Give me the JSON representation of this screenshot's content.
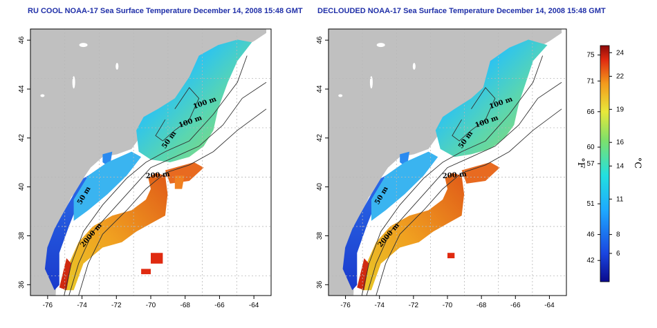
{
  "panels": [
    {
      "id": "left",
      "title": "RU COOL NOAA-17 Sea Surface Temperature December 14, 2008 15:48 GMT",
      "contour_labels": [
        "100 m",
        "100 m",
        "50 m",
        "200 m",
        "50 m",
        "2000 m"
      ]
    },
    {
      "id": "right",
      "title": "DECLOUDED NOAA-17 Sea Surface Temperature December 14, 2008 15:48 GMT",
      "contour_labels": [
        "100 m",
        "100 m",
        "50 m",
        "200 m",
        "50 m",
        "2000 m"
      ]
    }
  ],
  "axes": {
    "x_ticks": [
      "-76",
      "-74",
      "-72",
      "-70",
      "-68",
      "-66",
      "-64"
    ],
    "y_ticks": [
      "46",
      "44",
      "42",
      "40",
      "38",
      "36"
    ]
  },
  "colorbar": {
    "fahrenheit_unit": "°F",
    "celsius_unit": "°C",
    "fahrenheit_ticks": [
      "75",
      "71",
      "66",
      "60",
      "57",
      "51",
      "46",
      "42"
    ],
    "celsius_ticks": [
      "24",
      "22",
      "19",
      "16",
      "14",
      "11",
      "8",
      "6"
    ]
  },
  "colors": {
    "land": "#c0c0c0",
    "title": "#1f2fa8",
    "cold": "#1030c0",
    "warm": "#d02010"
  }
}
